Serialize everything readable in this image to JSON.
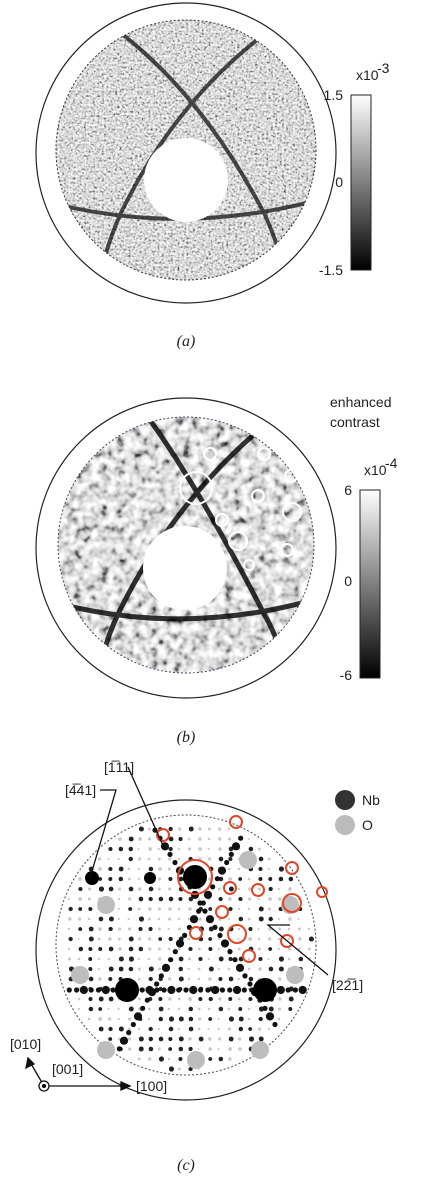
{
  "panels": [
    {
      "label": "(a)",
      "colorbar": {
        "multiplier": "x10",
        "exponent": -3,
        "ticks": [
          1.5,
          0,
          -1.5
        ]
      }
    },
    {
      "label": "(b)",
      "note": [
        "enhanced",
        "contrast"
      ],
      "colorbar": {
        "multiplier": "x10",
        "exponent": -4,
        "ticks": [
          6,
          0,
          -6
        ]
      }
    },
    {
      "label": "(c)",
      "legend": [
        "Nb",
        "O"
      ],
      "annotations": [
        "[4̅41]",
        "[1̅11]",
        "[22̅1]"
      ],
      "axes": [
        "[010]",
        "[001]",
        "[100]"
      ]
    }
  ]
}
